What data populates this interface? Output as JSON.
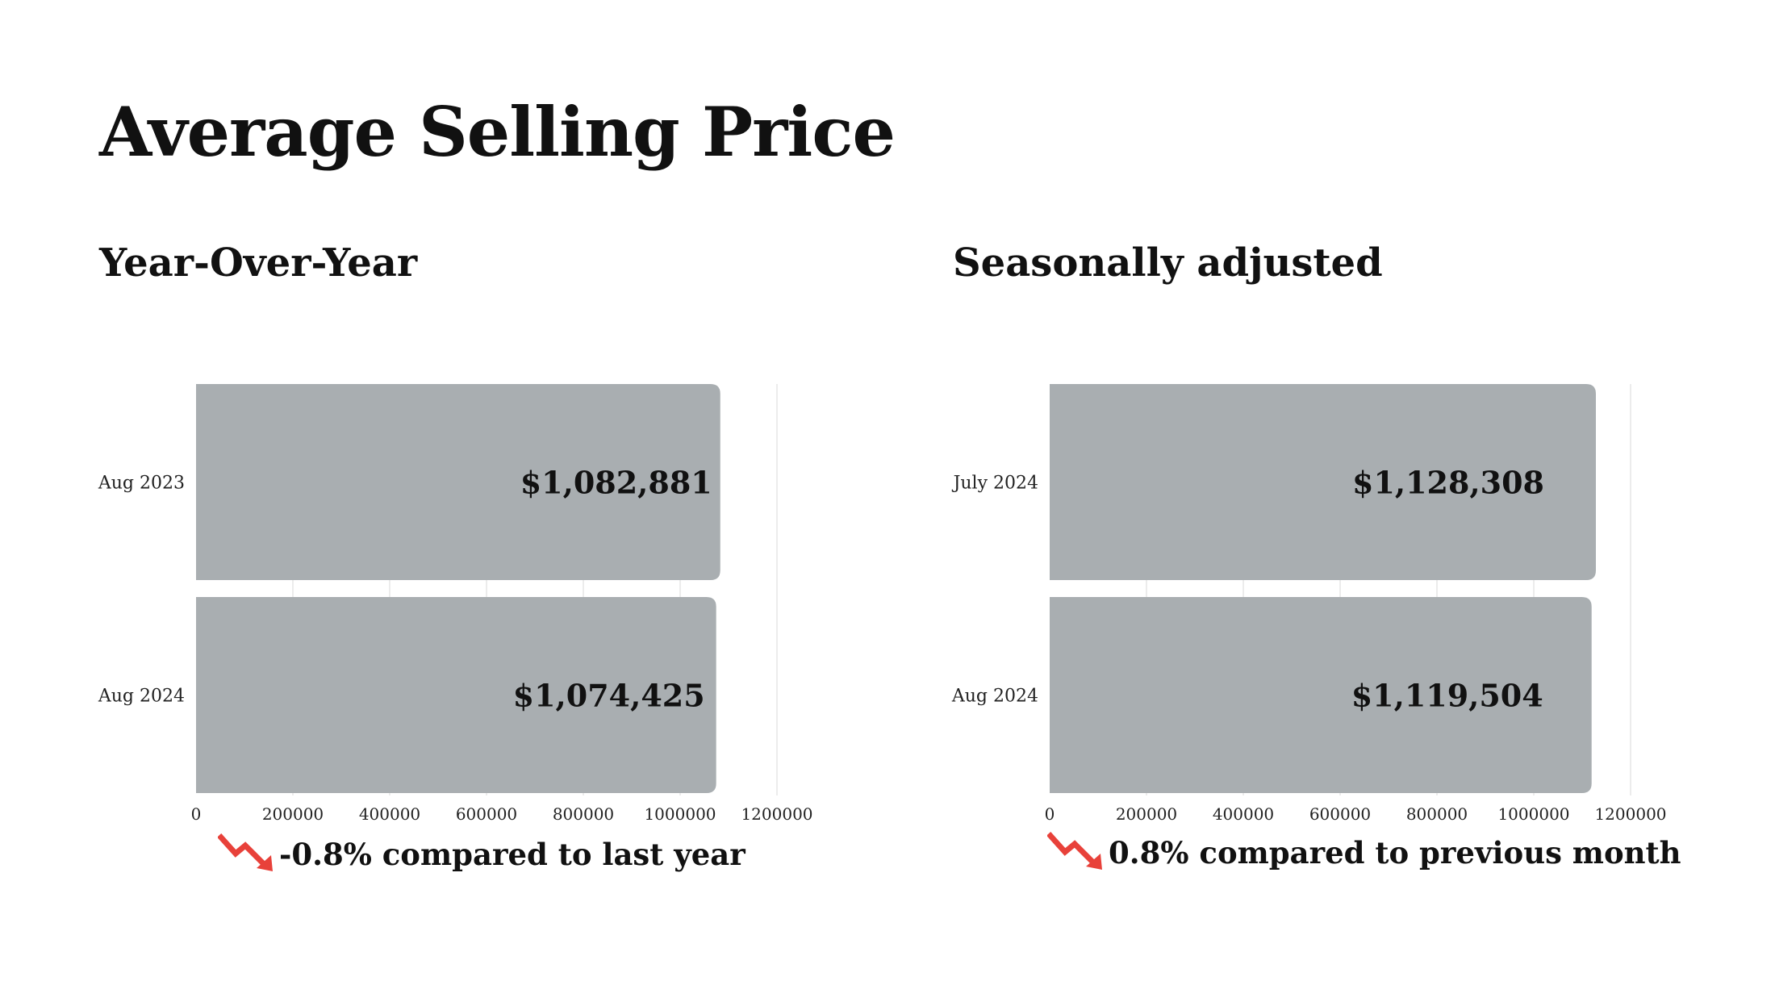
{
  "title": "Average Selling Price",
  "colors": {
    "bar": "#a9aeb1",
    "grid": "#e6e6e6",
    "trend_down": "#e8413a"
  },
  "panels": [
    {
      "subtitle": "Year-Over-Year",
      "summary": "-0.8% compared to last year",
      "trend_icon": "trend-down-arrow-icon"
    },
    {
      "subtitle": "Seasonally adjusted",
      "summary": "0.8% compared to previous month",
      "trend_icon": "trend-down-arrow-icon"
    }
  ],
  "chart_data": [
    {
      "type": "bar",
      "orientation": "horizontal",
      "categories": [
        "Aug 2023",
        "Aug 2024"
      ],
      "values": [
        1082881,
        1074425
      ],
      "value_labels": [
        "$1,082,881",
        "$1,074,425"
      ],
      "xlim": [
        0,
        1200000
      ],
      "xticks": [
        0,
        200000,
        400000,
        600000,
        800000,
        1000000,
        1200000
      ],
      "xtick_labels": [
        "0",
        "200000",
        "400000",
        "600000",
        "800000",
        "1000000",
        "1200000"
      ],
      "grid": true,
      "title": "Year-Over-Year"
    },
    {
      "type": "bar",
      "orientation": "horizontal",
      "categories": [
        "July 2024",
        "Aug 2024"
      ],
      "values": [
        1128308,
        1119504
      ],
      "value_labels": [
        "$1,128,308",
        "$1,119,504"
      ],
      "xlim": [
        0,
        1200000
      ],
      "xticks": [
        0,
        200000,
        400000,
        600000,
        800000,
        1000000,
        1200000
      ],
      "xtick_labels": [
        "0",
        "200000",
        "400000",
        "600000",
        "800000",
        "1000000",
        "1200000"
      ],
      "grid": true,
      "title": "Seasonally adjusted"
    }
  ]
}
